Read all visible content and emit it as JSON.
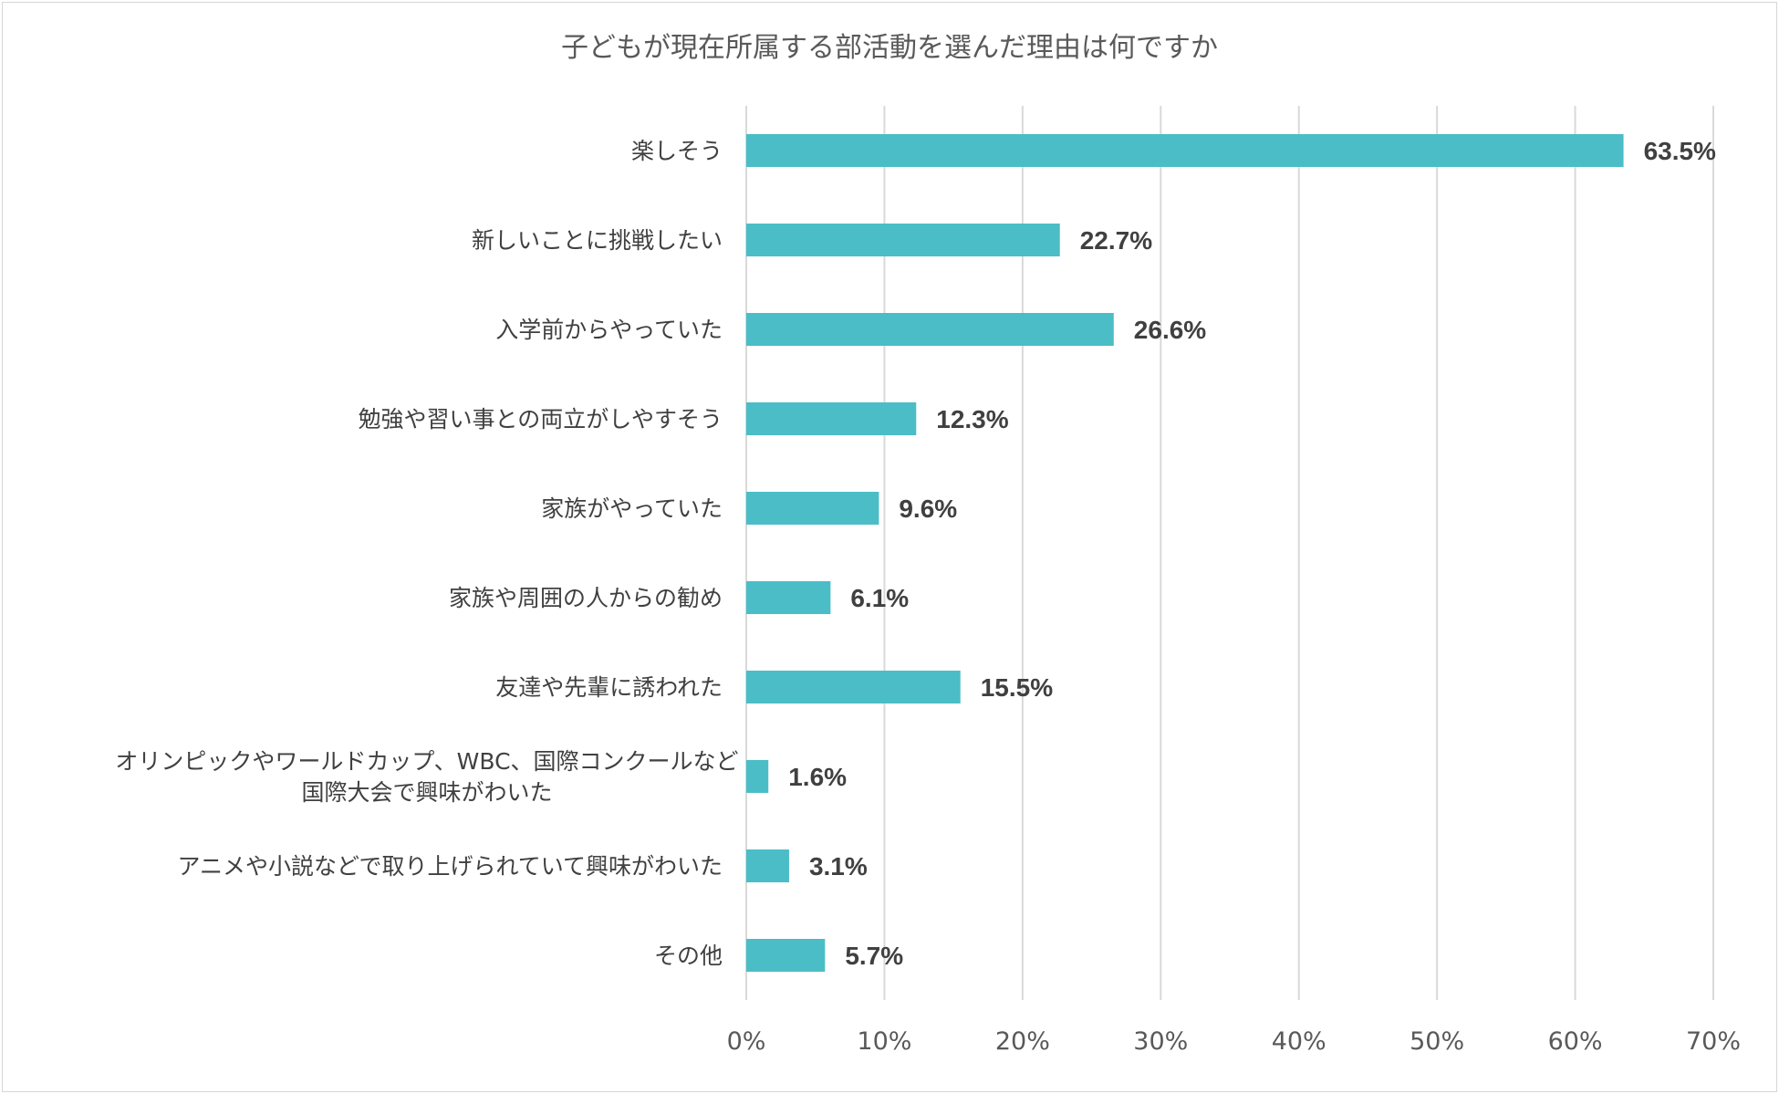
{
  "chart_data": {
    "type": "bar",
    "orientation": "horizontal",
    "title": "子どもが現在所属する部活動を選んだ理由は何ですか",
    "categories": [
      "楽しそう",
      "新しいことに挑戦したい",
      "入学前からやっていた",
      "勉強や習い事との両立がしやすそう",
      "家族がやっていた",
      "家族や周囲の人からの勧め",
      "友達や先輩に誘われた",
      "オリンピックやワールドカップ、WBC、国際コンクールなど\n国際大会で興味がわいた",
      "アニメや小説などで取り上げられていて興味がわいた",
      "その他"
    ],
    "values": [
      63.5,
      22.7,
      26.6,
      12.3,
      9.6,
      6.1,
      15.5,
      1.6,
      3.1,
      5.7
    ],
    "value_labels": [
      "63.5%",
      "22.7%",
      "26.6%",
      "12.3%",
      "9.6%",
      "6.1%",
      "15.5%",
      "1.6%",
      "3.1%",
      "5.7%"
    ],
    "xlim": [
      0,
      70
    ],
    "x_ticks": [
      "0%",
      "10%",
      "20%",
      "30%",
      "40%",
      "50%",
      "60%",
      "70%"
    ],
    "grid": "vertical",
    "legend": "none",
    "bar_color": "#4bbdc6"
  }
}
